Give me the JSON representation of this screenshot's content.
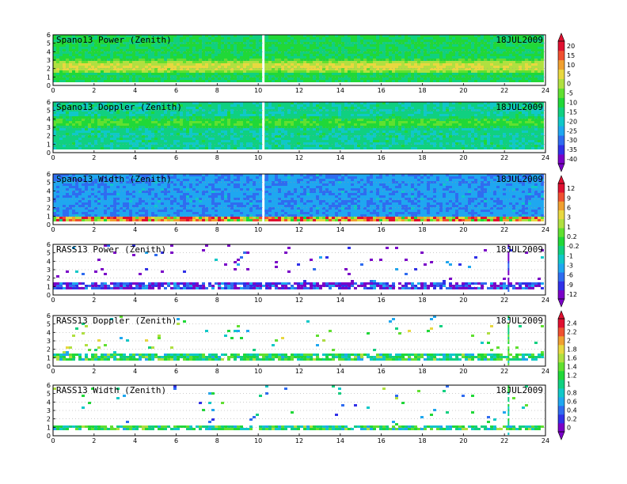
{
  "chart_data": [
    {
      "type": "heatmap",
      "title": "Spano13 Power (Zenith)",
      "date": "18JUL2009",
      "x_ticks": [
        "0",
        "2",
        "4",
        "6",
        "8",
        "10",
        "12",
        "14",
        "16",
        "18",
        "20",
        "22",
        "24"
      ],
      "y_ticks": [
        "0",
        "1",
        "2",
        "3",
        "4",
        "5",
        "6"
      ],
      "xlim": [
        0,
        24
      ],
      "ylim": [
        0,
        6
      ],
      "colorbar_group": 0,
      "style": "dense",
      "base_value": -12,
      "band": {
        "center": 2.2,
        "width": 0.9,
        "value": 3
      },
      "white_gap_x": 10.25
    },
    {
      "type": "heatmap",
      "title": "Spano13 Doppler (Zenith)",
      "date": "18JUL2009",
      "x_ticks": [
        "0",
        "2",
        "4",
        "6",
        "8",
        "10",
        "12",
        "14",
        "16",
        "18",
        "20",
        "22",
        "24"
      ],
      "y_ticks": [
        "0",
        "1",
        "2",
        "3",
        "4",
        "5",
        "6"
      ],
      "xlim": [
        0,
        24
      ],
      "ylim": [
        0,
        6
      ],
      "colorbar_group": 0,
      "style": "dense",
      "base_value": -16,
      "band": {
        "center": 3.5,
        "width": 0.8,
        "value": -8
      },
      "white_gap_x": 10.25
    },
    {
      "type": "heatmap",
      "title": "Spano13 Width (Zenith)",
      "date": "18JUL2009",
      "x_ticks": [
        "0",
        "2",
        "4",
        "6",
        "8",
        "10",
        "12",
        "14",
        "16",
        "18",
        "20",
        "22",
        "24"
      ],
      "y_ticks": [
        "0",
        "1",
        "2",
        "3",
        "4",
        "5",
        "6"
      ],
      "xlim": [
        0,
        24
      ],
      "ylim": [
        0,
        6
      ],
      "colorbar_group": 1,
      "style": "dense",
      "base_value": -6,
      "band": {
        "center": 0.6,
        "width": 0.35,
        "value": 6
      },
      "white_gap_x": 10.25
    },
    {
      "type": "heatmap",
      "title": "RASS13 Power (Zenith)",
      "date": "18JUL2009",
      "x_ticks": [
        "0",
        "2",
        "4",
        "6",
        "8",
        "10",
        "12",
        "14",
        "16",
        "18",
        "20",
        "22",
        "24"
      ],
      "y_ticks": [
        "0",
        "1",
        "2",
        "3",
        "4",
        "5",
        "6"
      ],
      "xlim": [
        0,
        24
      ],
      "ylim": [
        0,
        6
      ],
      "colorbar_group": 1,
      "style": "sparse",
      "base_value": -10,
      "band": {
        "center": 1.0,
        "width": 0.4,
        "value": -9
      },
      "vertical_line_x": 22.2
    },
    {
      "type": "heatmap",
      "title": "RASS13 Doppler (Zenith)",
      "date": "18JUL2009",
      "x_ticks": [
        "0",
        "2",
        "4",
        "6",
        "8",
        "10",
        "12",
        "14",
        "16",
        "18",
        "20",
        "22",
        "24"
      ],
      "y_ticks": [
        "0",
        "1",
        "2",
        "3",
        "4",
        "5",
        "6"
      ],
      "xlim": [
        0,
        24
      ],
      "ylim": [
        0,
        6
      ],
      "colorbar_group": 2,
      "style": "sparse",
      "base_value": 1.2,
      "band": {
        "center": 0.9,
        "width": 0.4,
        "value": 1.1
      },
      "vertical_line_x": 22.2
    },
    {
      "type": "heatmap",
      "title": "RASS13 Width (Zenith)",
      "date": "18JUL2009",
      "x_ticks": [
        "0",
        "2",
        "4",
        "6",
        "8",
        "10",
        "12",
        "14",
        "16",
        "18",
        "20",
        "22",
        "24"
      ],
      "y_ticks": [
        "0",
        "1",
        "2",
        "3",
        "4",
        "5",
        "6"
      ],
      "xlim": [
        0,
        24
      ],
      "ylim": [
        0,
        6
      ],
      "colorbar_group": 2,
      "style": "sparse",
      "base_value": 0.9,
      "band": {
        "center": 0.8,
        "width": 0.4,
        "value": 1.1
      },
      "vertical_line_x": 22.2
    }
  ],
  "colorbars": [
    {
      "labels": [
        "20",
        "15",
        "10",
        "5",
        "0",
        "-5",
        "-10",
        "-15",
        "-20",
        "-25",
        "-30",
        "-35",
        "-40"
      ],
      "range": [
        -42,
        22
      ]
    },
    {
      "labels": [
        "12",
        "9",
        "6",
        "3",
        "1",
        "0.2",
        "-0.2",
        "-1",
        "-3",
        "-6",
        "-9",
        "-12"
      ],
      "range": [
        -12,
        12
      ]
    },
    {
      "labels": [
        "2.4",
        "2.2",
        "2",
        "1.8",
        "1.6",
        "1.4",
        "1.2",
        "1",
        "0.8",
        "0.6",
        "0.4",
        "0.2",
        "0"
      ],
      "range": [
        0,
        2.4
      ]
    }
  ],
  "colors": [
    "#7a00c8",
    "#3030e8",
    "#2f6cf0",
    "#1fa7f0",
    "#10c8c8",
    "#10d080",
    "#20d838",
    "#60e030",
    "#b0e040",
    "#e8d840",
    "#f0a030",
    "#f05030",
    "#e01030"
  ]
}
